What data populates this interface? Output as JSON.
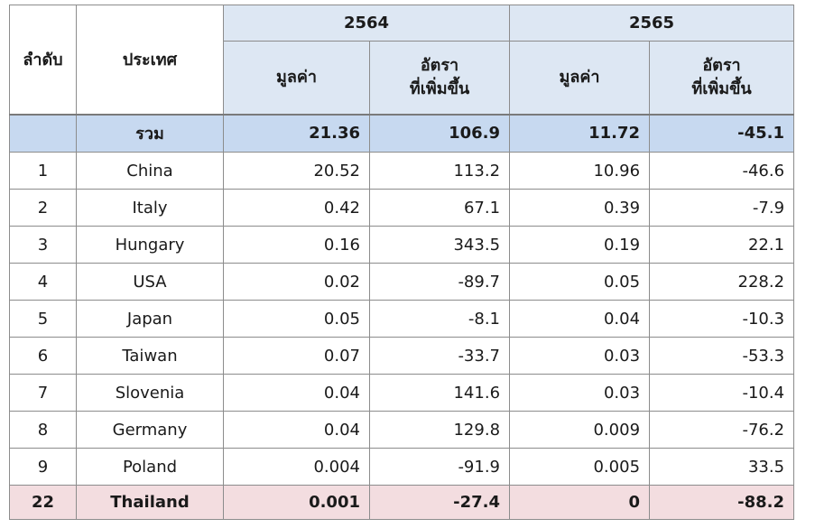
{
  "header": {
    "rank_label": "ลำดับ",
    "country_label": "ประเทศ",
    "year1": "2564",
    "year2": "2565",
    "value_label": "มูลค่า",
    "rate_label_line1": "อัตรา",
    "rate_label_line2": "ที่เพิ่มขึ้น"
  },
  "total": {
    "rank": "",
    "country": "รวม",
    "v2564": "21.36",
    "r2564": "106.9",
    "v2565": "11.72",
    "r2565": "-45.1"
  },
  "rows": [
    {
      "rank": "1",
      "country": "China",
      "v2564": "20.52",
      "r2564": "113.2",
      "v2565": "10.96",
      "r2565": "-46.6"
    },
    {
      "rank": "2",
      "country": "Italy",
      "v2564": "0.42",
      "r2564": "67.1",
      "v2565": "0.39",
      "r2565": "-7.9"
    },
    {
      "rank": "3",
      "country": "Hungary",
      "v2564": "0.16",
      "r2564": "343.5",
      "v2565": "0.19",
      "r2565": "22.1"
    },
    {
      "rank": "4",
      "country": "USA",
      "v2564": "0.02",
      "r2564": "-89.7",
      "v2565": "0.05",
      "r2565": "228.2"
    },
    {
      "rank": "5",
      "country": "Japan",
      "v2564": "0.05",
      "r2564": "-8.1",
      "v2565": "0.04",
      "r2565": "-10.3"
    },
    {
      "rank": "6",
      "country": "Taiwan",
      "v2564": "0.07",
      "r2564": "-33.7",
      "v2565": "0.03",
      "r2565": "-53.3"
    },
    {
      "rank": "7",
      "country": "Slovenia",
      "v2564": "0.04",
      "r2564": "141.6",
      "v2565": "0.03",
      "r2565": "-10.4"
    },
    {
      "rank": "8",
      "country": "Germany",
      "v2564": "0.04",
      "r2564": "129.8",
      "v2565": "0.009",
      "r2565": "-76.2"
    },
    {
      "rank": "9",
      "country": "Poland",
      "v2564": "0.004",
      "r2564": "-91.9",
      "v2565": "0.005",
      "r2565": "33.5"
    }
  ],
  "highlight": {
    "rank": "22",
    "country": "Thailand",
    "v2564": "0.001",
    "r2564": "-27.4",
    "v2565": "0",
    "r2565": "-88.2"
  },
  "colors": {
    "header_bg": "#dde7f3",
    "total_bg": "#c7d9f0",
    "highlight_bg": "#f3dde0"
  }
}
